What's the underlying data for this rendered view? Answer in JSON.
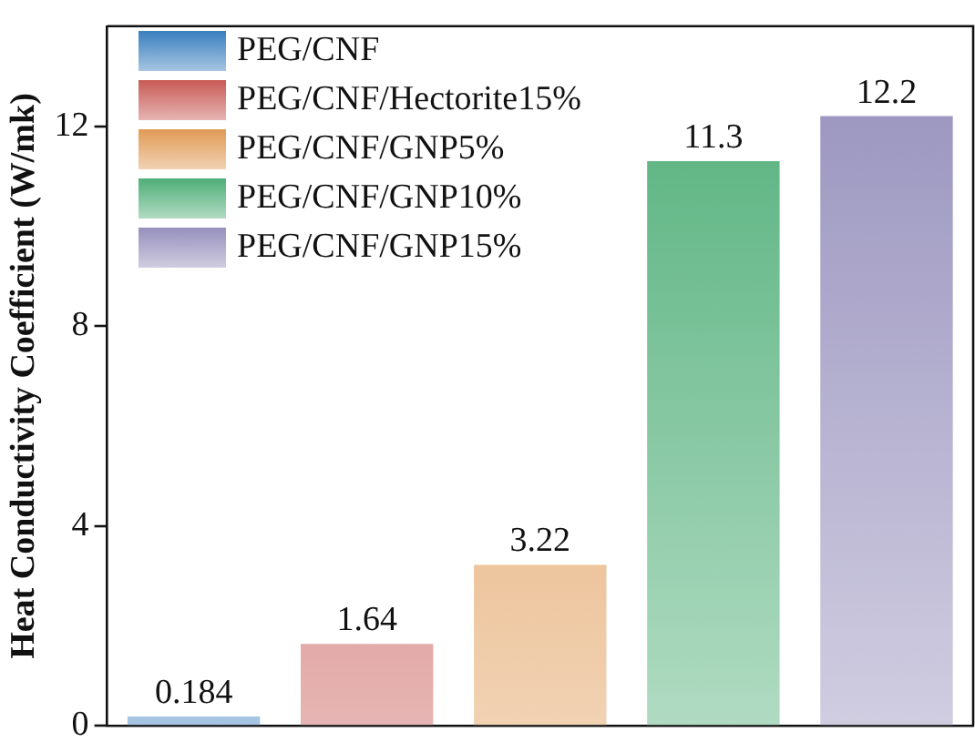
{
  "chart_data": {
    "type": "bar",
    "ylabel": "Heat Conductivity Coefficient (W/mk)",
    "categories": [
      null,
      null,
      null,
      null,
      null
    ],
    "series": [
      {
        "name": "PEG/CNF",
        "color": "#3a7fbf",
        "values": [
          0.184,
          null,
          null,
          null,
          null
        ]
      },
      {
        "name": "PEG/CNF/Hectorite15%",
        "color": "#c85a55",
        "values": [
          null,
          1.64,
          null,
          null,
          null
        ]
      },
      {
        "name": "PEG/CNF/GNP5%",
        "color": "#e09a55",
        "values": [
          null,
          null,
          3.22,
          null,
          null
        ]
      },
      {
        "name": "PEG/CNF/GNP10%",
        "color": "#4fae78",
        "values": [
          null,
          null,
          null,
          11.3,
          null
        ]
      },
      {
        "name": "PEG/CNF/GNP15%",
        "color": "#9690bc",
        "values": [
          null,
          null,
          null,
          null,
          12.2
        ]
      }
    ],
    "ylim": [
      0,
      14
    ],
    "yticks": [
      0,
      4,
      8,
      12
    ],
    "grid": false,
    "legend": "top left",
    "data_labels": true,
    "tick_labels": "y"
  }
}
